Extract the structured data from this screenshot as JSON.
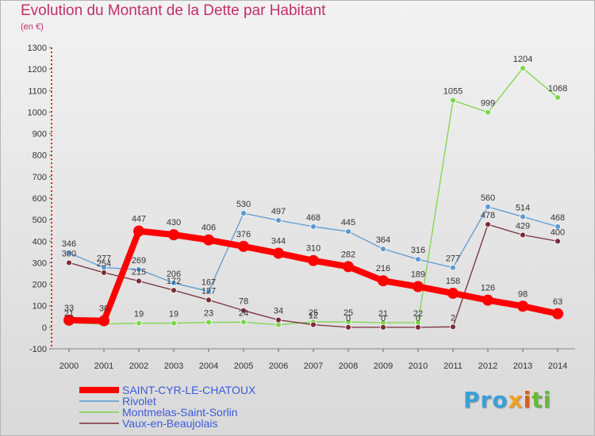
{
  "title": "Evolution du Montant de la Dette par Habitant",
  "unit": "(en €)",
  "logo": {
    "p": "Pro",
    "x": "x",
    "i": "i",
    "t": "ti"
  },
  "chart_data": {
    "type": "line",
    "x": [
      "2000",
      "2001",
      "2002",
      "2003",
      "2004",
      "2005",
      "2006",
      "2007",
      "2008",
      "2009",
      "2010",
      "2011",
      "2012",
      "2013",
      "2014"
    ],
    "ylim": [
      -100,
      1300
    ],
    "yticks": [
      -100,
      0,
      100,
      200,
      300,
      400,
      500,
      600,
      700,
      800,
      900,
      1000,
      1100,
      1200,
      1300
    ],
    "grid": false,
    "legend_position": "bottom-left",
    "series": [
      {
        "name": "SAINT-CYR-LE-CHATOUX",
        "color": "#ff0000",
        "width": 8,
        "values": [
          33,
          30,
          447,
          430,
          406,
          376,
          344,
          310,
          282,
          216,
          189,
          158,
          126,
          98,
          63
        ]
      },
      {
        "name": "Rivolet",
        "color": "#5b9bd5",
        "width": 1.3,
        "values": [
          346,
          277,
          269,
          206,
          167,
          530,
          497,
          468,
          445,
          364,
          316,
          277,
          560,
          514,
          468
        ],
        "label_texts": [
          "346",
          "277",
          "269",
          "206",
          "167",
          "530",
          "497",
          "468",
          "445",
          "364",
          "316",
          "277",
          "560",
          "514",
          "468"
        ]
      },
      {
        "name": "Montmelas-Saint-Sorlin",
        "color": "#7cd64a",
        "width": 1.3,
        "values": [
          21,
          15,
          19,
          19,
          23,
          24,
          12,
          25,
          25,
          21,
          22,
          1055,
          999,
          1204,
          1068
        ],
        "label_texts": [
          "21",
          "",
          "19",
          "19",
          "23",
          "24",
          "",
          "25",
          "25",
          "21",
          "22",
          "1055",
          "999",
          "1204",
          "1068"
        ]
      },
      {
        "name": "Vaux-en-Beaujolais",
        "color": "#7a2e3a",
        "width": 1.3,
        "values": [
          300,
          254,
          215,
          172,
          127,
          78,
          34,
          12,
          0,
          0,
          0,
          2,
          478,
          429,
          400
        ],
        "label_texts": [
          "300",
          "254",
          "215",
          "172",
          "127",
          "78",
          "34",
          "12",
          "0",
          "0",
          "0",
          "2",
          "478",
          "429",
          "400"
        ]
      }
    ],
    "saint_cyr_labels": [
      "33",
      "30",
      "447",
      "430",
      "406",
      "376",
      "344",
      "310",
      "282",
      "216",
      "189",
      "158",
      "126",
      "98",
      "63"
    ]
  }
}
